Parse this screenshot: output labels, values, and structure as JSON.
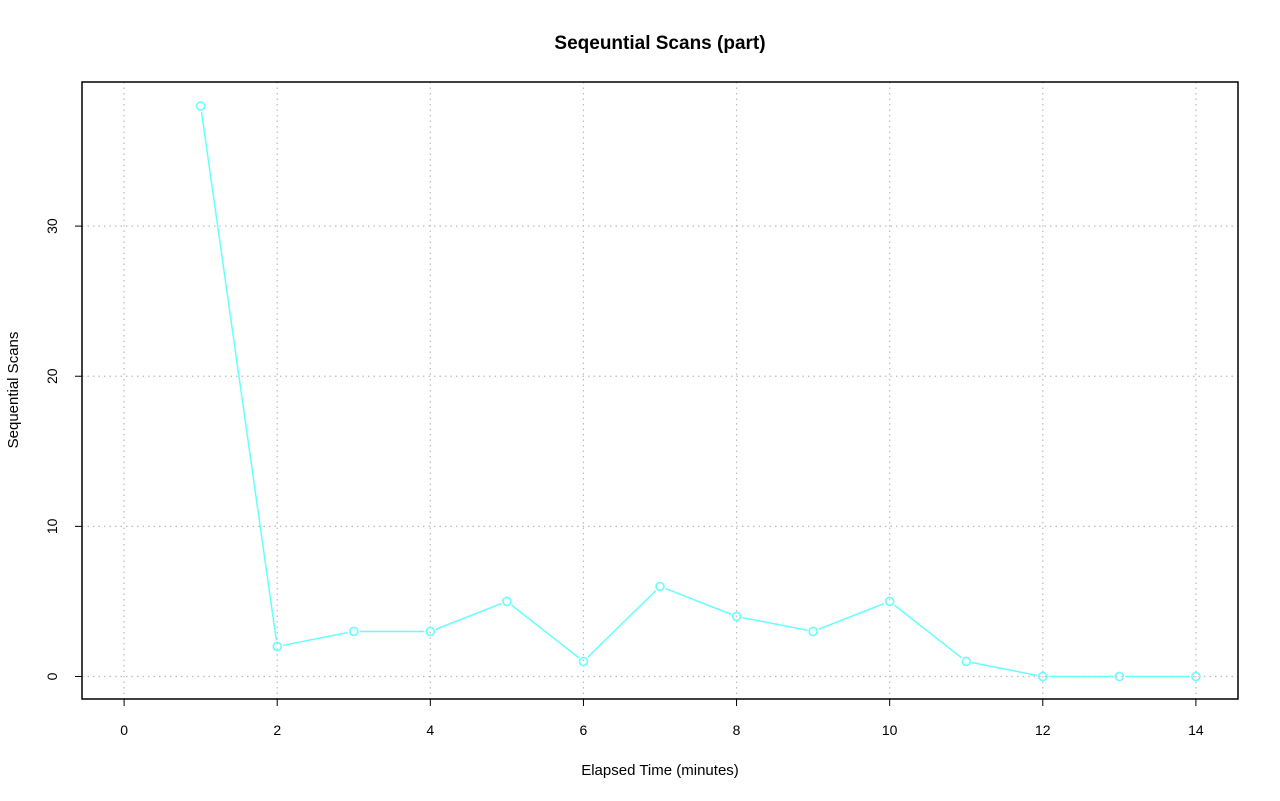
{
  "chart_data": {
    "type": "line",
    "title": "Seqeuntial Scans (part)",
    "xlabel": "Elapsed Time (minutes)",
    "ylabel": "Sequential Scans",
    "xlim": [
      -0.55,
      14.55
    ],
    "ylim": [
      -1.5,
      39.6
    ],
    "x_ticks": [
      0,
      2,
      4,
      6,
      8,
      10,
      12,
      14
    ],
    "y_ticks": [
      0,
      10,
      20,
      30
    ],
    "grid": true,
    "series_color": "#66ffff",
    "series": [
      {
        "x": [
          1,
          2,
          3,
          4,
          5,
          6,
          7,
          8,
          9,
          10,
          11,
          12,
          13,
          14
        ],
        "values": [
          38,
          2,
          3,
          3,
          5,
          1,
          6,
          4,
          3,
          5,
          1,
          0,
          0,
          0
        ]
      }
    ]
  }
}
